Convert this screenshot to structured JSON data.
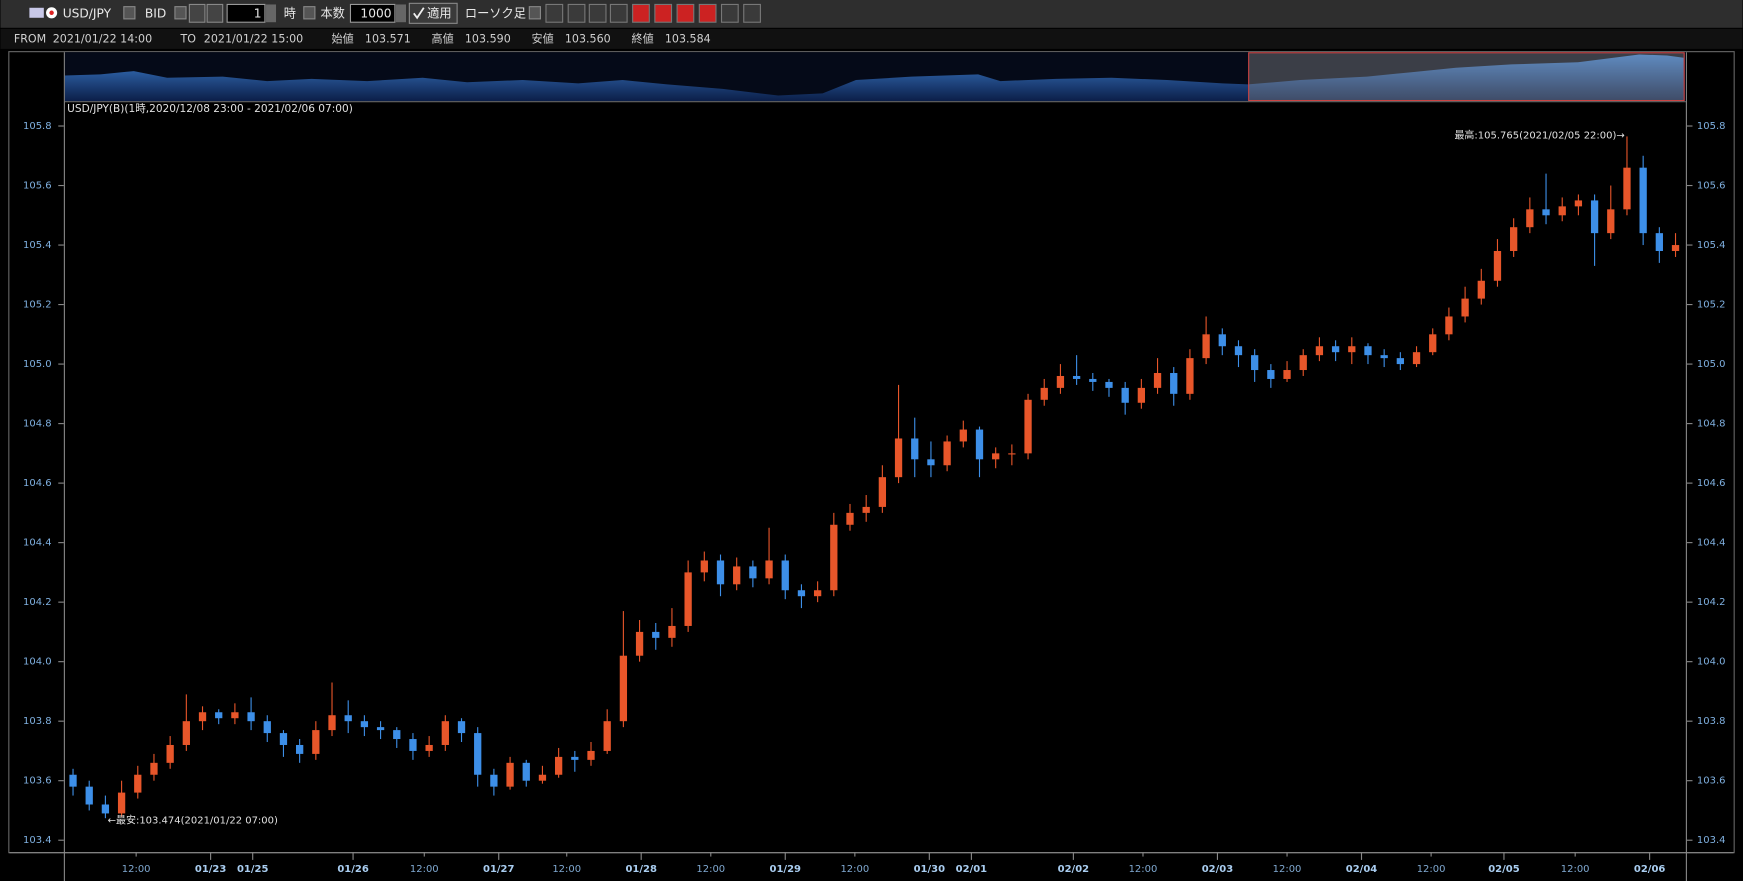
{
  "toolbar": {
    "symbol": "USD/JPY",
    "side": "BID",
    "period": "1",
    "unit": "時",
    "count_label": "本数",
    "count": "1000",
    "apply": "適用",
    "chart_kind": "ローソク足"
  },
  "info_bar": {
    "from_label": "FROM",
    "from": "2021/01/22 14:00",
    "to_label": "TO",
    "to": "2021/01/22 15:00",
    "open_label": "始値",
    "open": "103.571",
    "high_label": "高値",
    "high": "103.590",
    "low_label": "安値",
    "low": "103.560",
    "close_label": "終値",
    "close": "103.584"
  },
  "chart_data": {
    "type": "candlestick",
    "title": "USD/JPY(B)(1時,2020/12/08 23:00 - 2021/02/06 07:00)",
    "annotation_high": "最高:105.765(2021/02/05 22:00)→",
    "annotation_low": "←最安:103.474(2021/01/22 07:00)",
    "up_color": "#e8562a",
    "down_color": "#3d8fe8",
    "open": [
      103.62,
      103.58,
      103.52,
      103.49,
      103.56,
      103.62,
      103.66,
      103.72,
      103.8,
      103.83,
      103.81,
      103.83,
      103.8,
      103.76,
      103.72,
      103.69,
      103.77,
      103.82,
      103.8,
      103.78,
      103.77,
      103.74,
      103.7,
      103.72,
      103.8,
      103.76,
      103.62,
      103.58,
      103.66,
      103.6,
      103.62,
      103.68,
      103.67,
      103.7,
      103.8,
      104.02,
      104.1,
      104.08,
      104.12,
      104.3,
      104.34,
      104.26,
      104.32,
      104.28,
      104.34,
      104.24,
      104.22,
      104.24,
      104.46,
      104.5,
      104.52,
      104.62,
      104.75,
      104.68,
      104.66,
      104.74,
      104.78,
      104.68,
      104.7,
      104.7,
      104.88,
      104.92,
      104.96,
      104.95,
      104.94,
      104.92,
      104.87,
      104.92,
      104.97,
      104.9,
      105.02,
      105.1,
      105.06,
      105.03,
      104.98,
      104.95,
      104.98,
      105.03,
      105.06,
      105.04,
      105.06,
      105.03,
      105.02,
      105.0,
      105.04,
      105.1,
      105.16,
      105.22,
      105.28,
      105.38,
      105.46,
      105.52,
      105.5,
      105.53,
      105.55,
      105.44,
      105.52,
      105.66,
      105.44,
      105.38
    ],
    "high": [
      103.64,
      103.6,
      103.55,
      103.6,
      103.65,
      103.69,
      103.75,
      103.89,
      103.85,
      103.84,
      103.86,
      103.88,
      103.82,
      103.77,
      103.74,
      103.8,
      103.93,
      103.87,
      103.82,
      103.8,
      103.78,
      103.76,
      103.75,
      103.82,
      103.81,
      103.78,
      103.64,
      103.68,
      103.67,
      103.65,
      103.71,
      103.7,
      103.73,
      103.84,
      104.17,
      104.14,
      104.13,
      104.18,
      104.34,
      104.37,
      104.36,
      104.35,
      104.34,
      104.45,
      104.36,
      104.26,
      104.27,
      104.5,
      104.53,
      104.56,
      104.66,
      104.93,
      104.82,
      104.74,
      104.76,
      104.81,
      104.79,
      104.72,
      104.73,
      104.9,
      104.95,
      105.0,
      105.03,
      104.97,
      104.95,
      104.94,
      104.95,
      105.02,
      104.99,
      105.05,
      105.16,
      105.12,
      105.08,
      105.05,
      105.0,
      105.01,
      105.05,
      105.09,
      105.08,
      105.09,
      105.07,
      105.05,
      105.04,
      105.06,
      105.12,
      105.19,
      105.26,
      105.32,
      105.42,
      105.49,
      105.56,
      105.64,
      105.56,
      105.57,
      105.57,
      105.6,
      105.765,
      105.7,
      105.46,
      105.44
    ],
    "low": [
      103.55,
      103.5,
      103.474,
      103.48,
      103.54,
      103.6,
      103.64,
      103.7,
      103.77,
      103.79,
      103.79,
      103.77,
      103.73,
      103.68,
      103.66,
      103.67,
      103.75,
      103.76,
      103.75,
      103.74,
      103.71,
      103.67,
      103.68,
      103.7,
      103.73,
      103.58,
      103.55,
      103.57,
      103.58,
      103.59,
      103.61,
      103.63,
      103.65,
      103.69,
      103.78,
      104.0,
      104.04,
      104.05,
      104.1,
      104.27,
      104.22,
      104.24,
      104.25,
      104.26,
      104.21,
      104.18,
      104.2,
      104.22,
      104.44,
      104.47,
      104.5,
      104.6,
      104.62,
      104.62,
      104.64,
      104.72,
      104.62,
      104.65,
      104.66,
      104.68,
      104.86,
      104.9,
      104.93,
      104.91,
      104.89,
      104.83,
      104.85,
      104.9,
      104.86,
      104.88,
      105.0,
      105.03,
      104.99,
      104.94,
      104.92,
      104.94,
      104.96,
      105.01,
      105.01,
      105.0,
      105.0,
      104.99,
      104.98,
      104.99,
      105.03,
      105.08,
      105.14,
      105.2,
      105.26,
      105.36,
      105.44,
      105.47,
      105.48,
      105.5,
      105.33,
      105.42,
      105.5,
      105.4,
      105.34,
      105.36
    ],
    "close": [
      103.58,
      103.52,
      103.49,
      103.56,
      103.62,
      103.66,
      103.72,
      103.8,
      103.83,
      103.81,
      103.83,
      103.8,
      103.76,
      103.72,
      103.69,
      103.77,
      103.82,
      103.8,
      103.78,
      103.77,
      103.74,
      103.7,
      103.72,
      103.8,
      103.76,
      103.62,
      103.58,
      103.66,
      103.6,
      103.62,
      103.68,
      103.67,
      103.7,
      103.8,
      104.02,
      104.1,
      104.08,
      104.12,
      104.3,
      104.34,
      104.26,
      104.32,
      104.28,
      104.34,
      104.24,
      104.22,
      104.24,
      104.46,
      104.5,
      104.52,
      104.62,
      104.75,
      104.68,
      104.66,
      104.74,
      104.78,
      104.68,
      104.7,
      104.7,
      104.88,
      104.92,
      104.96,
      104.95,
      104.94,
      104.92,
      104.87,
      104.92,
      104.97,
      104.9,
      105.02,
      105.1,
      105.06,
      105.03,
      104.98,
      104.95,
      104.98,
      105.03,
      105.06,
      105.04,
      105.06,
      105.03,
      105.02,
      105.0,
      105.04,
      105.1,
      105.16,
      105.22,
      105.28,
      105.38,
      105.46,
      105.52,
      105.5,
      105.53,
      105.55,
      105.44,
      105.52,
      105.66,
      105.44,
      105.38,
      105.4
    ],
    "ylim": [
      103.36,
      105.88
    ],
    "yticks": [
      103.4,
      103.6,
      103.8,
      {
        "value": 104,
        "label": "104.0"
      },
      104.2,
      104.4,
      104.6,
      104.8,
      {
        "value": 105,
        "label": "105.0"
      },
      105.2,
      105.4,
      105.6,
      105.8
    ],
    "xlim": [
      -0.5,
      99.5
    ],
    "xticks": [
      {
        "value": 3.9,
        "label": "12:00"
      },
      {
        "value": 8.5,
        "label": "01/23"
      },
      {
        "value": 11.1,
        "label": "01/25"
      },
      {
        "value": 17.3,
        "label": "01/26"
      },
      {
        "value": 21.7,
        "label": "12:00"
      },
      {
        "value": 26.3,
        "label": "01/27"
      },
      {
        "value": 30.5,
        "label": "12:00"
      },
      {
        "value": 35.1,
        "label": "01/28"
      },
      {
        "value": 39.4,
        "label": "12:00"
      },
      {
        "value": 44,
        "label": "01/29"
      },
      {
        "value": 48.3,
        "label": "12:00"
      },
      {
        "value": 52.9,
        "label": "01/30"
      },
      {
        "value": 55.5,
        "label": "02/01"
      },
      {
        "value": 61.8,
        "label": "02/02"
      },
      {
        "value": 66.1,
        "label": "12:00"
      },
      {
        "value": 70.7,
        "label": "02/03"
      },
      {
        "value": 75,
        "label": "12:00"
      },
      {
        "value": 79.6,
        "label": "02/04"
      },
      {
        "value": 83.9,
        "label": "12:00"
      },
      {
        "value": 88.4,
        "label": "02/05"
      },
      {
        "value": 92.8,
        "label": "12:00"
      },
      {
        "value": 97.4,
        "label": "02/06"
      }
    ]
  }
}
